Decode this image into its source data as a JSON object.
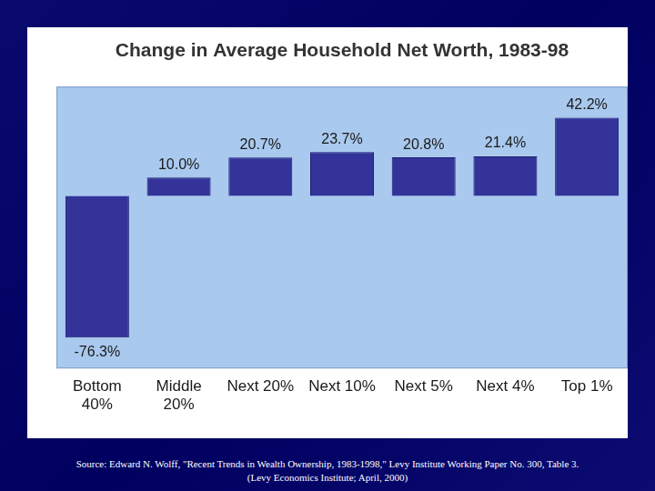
{
  "chart_data": {
    "type": "bar",
    "title": "Change in Average Household Net Worth, 1983-98",
    "categories": [
      "Bottom\n40%",
      "Middle\n20%",
      "Next 20%",
      "Next 10%",
      "Next 5%",
      "Next 4%",
      "Top 1%"
    ],
    "values": [
      -76.3,
      10.0,
      20.7,
      23.7,
      20.8,
      21.4,
      42.2
    ],
    "value_labels": [
      "-76.3%",
      "10.0%",
      "20.7%",
      "23.7%",
      "20.8%",
      "21.4%",
      "42.2%"
    ],
    "color": "#333399",
    "ylim": [
      -93,
      59
    ],
    "grid": false,
    "data_labels": true,
    "tick_labels": "x",
    "annotations": [
      "Source: Edward N. Wolff, \"Recent Trends in Wealth Ownership, 1983-1998,\" Levy Institute Working Paper No. 300, Table 3.",
      "(Levy Economics Institute; April, 2000)"
    ]
  }
}
